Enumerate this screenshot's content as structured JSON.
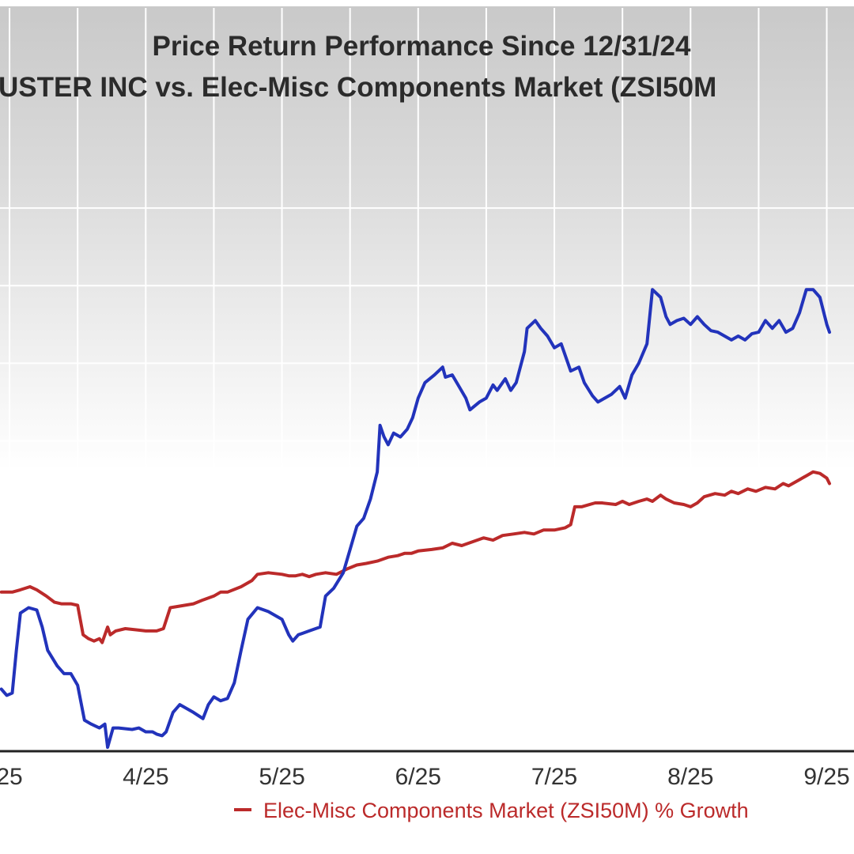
{
  "colors": {
    "series_a": "#2233bb",
    "series_b": "#bb2a2a",
    "axis": "#222222",
    "grid": "#ffffff",
    "bg_top": "#c9c9c9",
    "bg_bottom": "#ffffff"
  },
  "chart_data": {
    "type": "line",
    "title": "Price Return Performance Since 12/31/24",
    "subtitle": "USTER INC   vs.  Elec-Misc Components Market (ZSI50M",
    "xlabel": "",
    "ylabel": "",
    "x_ticks": [
      {
        "label": "25",
        "x": 2.0
      },
      {
        "label": "4/25",
        "x": 3.0
      },
      {
        "label": "5/25",
        "x": 4.0
      },
      {
        "label": "6/25",
        "x": 5.0
      },
      {
        "label": "7/25",
        "x": 6.0
      },
      {
        "label": "8/25",
        "x": 7.0
      },
      {
        "label": "9/25",
        "x": 8.0
      }
    ],
    "xlim": [
      1.93,
      8.2
    ],
    "ylim": [
      0,
      8
    ],
    "grid": true,
    "legend": [
      {
        "label": "Elec-Misc Components Market (ZSI50M) % Growth",
        "series": "b"
      }
    ],
    "series": [
      {
        "name": "CLUSTER INC",
        "color": "#2233bb",
        "points": [
          [
            1.94,
            0.8
          ],
          [
            1.98,
            0.72
          ],
          [
            2.02,
            0.75
          ],
          [
            2.05,
            1.3
          ],
          [
            2.08,
            1.78
          ],
          [
            2.14,
            1.85
          ],
          [
            2.2,
            1.82
          ],
          [
            2.24,
            1.6
          ],
          [
            2.28,
            1.3
          ],
          [
            2.35,
            1.1
          ],
          [
            2.4,
            1.0
          ],
          [
            2.45,
            1.0
          ],
          [
            2.5,
            0.85
          ],
          [
            2.55,
            0.4
          ],
          [
            2.6,
            0.35
          ],
          [
            2.66,
            0.3
          ],
          [
            2.7,
            0.35
          ],
          [
            2.72,
            0.05
          ],
          [
            2.76,
            0.3
          ],
          [
            2.8,
            0.3
          ],
          [
            2.9,
            0.28
          ],
          [
            2.95,
            0.3
          ],
          [
            3.0,
            0.25
          ],
          [
            3.05,
            0.25
          ],
          [
            3.08,
            0.22
          ],
          [
            3.12,
            0.2
          ],
          [
            3.15,
            0.25
          ],
          [
            3.2,
            0.5
          ],
          [
            3.25,
            0.6
          ],
          [
            3.3,
            0.55
          ],
          [
            3.35,
            0.5
          ],
          [
            3.42,
            0.42
          ],
          [
            3.46,
            0.6
          ],
          [
            3.5,
            0.7
          ],
          [
            3.55,
            0.65
          ],
          [
            3.6,
            0.68
          ],
          [
            3.65,
            0.88
          ],
          [
            3.7,
            1.3
          ],
          [
            3.75,
            1.7
          ],
          [
            3.82,
            1.85
          ],
          [
            3.9,
            1.8
          ],
          [
            4.0,
            1.7
          ],
          [
            4.05,
            1.5
          ],
          [
            4.08,
            1.42
          ],
          [
            4.12,
            1.5
          ],
          [
            4.2,
            1.55
          ],
          [
            4.28,
            1.6
          ],
          [
            4.32,
            2.0
          ],
          [
            4.38,
            2.1
          ],
          [
            4.45,
            2.3
          ],
          [
            4.5,
            2.6
          ],
          [
            4.55,
            2.9
          ],
          [
            4.6,
            3.0
          ],
          [
            4.65,
            3.25
          ],
          [
            4.7,
            3.6
          ],
          [
            4.72,
            4.2
          ],
          [
            4.75,
            4.05
          ],
          [
            4.78,
            3.95
          ],
          [
            4.82,
            4.1
          ],
          [
            4.87,
            4.05
          ],
          [
            4.92,
            4.15
          ],
          [
            4.96,
            4.3
          ],
          [
            5.0,
            4.55
          ],
          [
            5.05,
            4.75
          ],
          [
            5.12,
            4.85
          ],
          [
            5.18,
            4.95
          ],
          [
            5.2,
            4.82
          ],
          [
            5.25,
            4.85
          ],
          [
            5.3,
            4.7
          ],
          [
            5.35,
            4.55
          ],
          [
            5.38,
            4.4
          ],
          [
            5.45,
            4.5
          ],
          [
            5.5,
            4.55
          ],
          [
            5.55,
            4.72
          ],
          [
            5.58,
            4.65
          ],
          [
            5.64,
            4.8
          ],
          [
            5.68,
            4.65
          ],
          [
            5.72,
            4.75
          ],
          [
            5.78,
            5.15
          ],
          [
            5.8,
            5.45
          ],
          [
            5.86,
            5.55
          ],
          [
            5.9,
            5.45
          ],
          [
            5.95,
            5.35
          ],
          [
            6.0,
            5.2
          ],
          [
            6.05,
            5.25
          ],
          [
            6.12,
            4.9
          ],
          [
            6.18,
            4.95
          ],
          [
            6.22,
            4.75
          ],
          [
            6.28,
            4.58
          ],
          [
            6.32,
            4.5
          ],
          [
            6.37,
            4.55
          ],
          [
            6.42,
            4.6
          ],
          [
            6.48,
            4.7
          ],
          [
            6.52,
            4.55
          ],
          [
            6.57,
            4.85
          ],
          [
            6.62,
            5.0
          ],
          [
            6.68,
            5.25
          ],
          [
            6.72,
            5.95
          ],
          [
            6.78,
            5.85
          ],
          [
            6.82,
            5.6
          ],
          [
            6.85,
            5.5
          ],
          [
            6.9,
            5.55
          ],
          [
            6.95,
            5.58
          ],
          [
            7.0,
            5.5
          ],
          [
            7.05,
            5.6
          ],
          [
            7.1,
            5.5
          ],
          [
            7.15,
            5.42
          ],
          [
            7.2,
            5.4
          ],
          [
            7.25,
            5.35
          ],
          [
            7.3,
            5.3
          ],
          [
            7.35,
            5.35
          ],
          [
            7.4,
            5.3
          ],
          [
            7.45,
            5.38
          ],
          [
            7.5,
            5.4
          ],
          [
            7.55,
            5.55
          ],
          [
            7.6,
            5.45
          ],
          [
            7.65,
            5.55
          ],
          [
            7.7,
            5.4
          ],
          [
            7.75,
            5.45
          ],
          [
            7.8,
            5.65
          ],
          [
            7.85,
            5.95
          ],
          [
            7.9,
            5.95
          ],
          [
            7.95,
            5.85
          ],
          [
            8.0,
            5.5
          ],
          [
            8.02,
            5.4
          ]
        ]
      },
      {
        "name": "Elec-Misc Components Market (ZSI50M) % Growth",
        "color": "#bb2a2a",
        "points": [
          [
            1.94,
            2.05
          ],
          [
            2.02,
            2.05
          ],
          [
            2.08,
            2.08
          ],
          [
            2.15,
            2.12
          ],
          [
            2.2,
            2.08
          ],
          [
            2.27,
            2.0
          ],
          [
            2.33,
            1.92
          ],
          [
            2.38,
            1.9
          ],
          [
            2.45,
            1.9
          ],
          [
            2.5,
            1.88
          ],
          [
            2.54,
            1.5
          ],
          [
            2.58,
            1.45
          ],
          [
            2.62,
            1.42
          ],
          [
            2.66,
            1.45
          ],
          [
            2.68,
            1.4
          ],
          [
            2.72,
            1.6
          ],
          [
            2.74,
            1.5
          ],
          [
            2.78,
            1.55
          ],
          [
            2.85,
            1.58
          ],
          [
            2.95,
            1.56
          ],
          [
            3.0,
            1.55
          ],
          [
            3.08,
            1.55
          ],
          [
            3.13,
            1.58
          ],
          [
            3.18,
            1.85
          ],
          [
            3.25,
            1.87
          ],
          [
            3.35,
            1.9
          ],
          [
            3.42,
            1.95
          ],
          [
            3.5,
            2.0
          ],
          [
            3.55,
            2.05
          ],
          [
            3.6,
            2.05
          ],
          [
            3.7,
            2.12
          ],
          [
            3.78,
            2.2
          ],
          [
            3.82,
            2.28
          ],
          [
            3.9,
            2.3
          ],
          [
            4.0,
            2.28
          ],
          [
            4.05,
            2.26
          ],
          [
            4.1,
            2.26
          ],
          [
            4.15,
            2.28
          ],
          [
            4.2,
            2.25
          ],
          [
            4.25,
            2.28
          ],
          [
            4.32,
            2.3
          ],
          [
            4.4,
            2.28
          ],
          [
            4.48,
            2.35
          ],
          [
            4.55,
            2.4
          ],
          [
            4.62,
            2.42
          ],
          [
            4.7,
            2.45
          ],
          [
            4.78,
            2.5
          ],
          [
            4.85,
            2.52
          ],
          [
            4.9,
            2.55
          ],
          [
            4.95,
            2.55
          ],
          [
            5.0,
            2.58
          ],
          [
            5.1,
            2.6
          ],
          [
            5.18,
            2.62
          ],
          [
            5.25,
            2.68
          ],
          [
            5.32,
            2.65
          ],
          [
            5.4,
            2.7
          ],
          [
            5.48,
            2.75
          ],
          [
            5.55,
            2.72
          ],
          [
            5.62,
            2.78
          ],
          [
            5.7,
            2.8
          ],
          [
            5.78,
            2.82
          ],
          [
            5.85,
            2.8
          ],
          [
            5.92,
            2.85
          ],
          [
            6.0,
            2.85
          ],
          [
            6.08,
            2.88
          ],
          [
            6.12,
            2.92
          ],
          [
            6.15,
            3.15
          ],
          [
            6.2,
            3.15
          ],
          [
            6.3,
            3.2
          ],
          [
            6.35,
            3.2
          ],
          [
            6.45,
            3.18
          ],
          [
            6.5,
            3.22
          ],
          [
            6.55,
            3.18
          ],
          [
            6.62,
            3.22
          ],
          [
            6.68,
            3.25
          ],
          [
            6.72,
            3.22
          ],
          [
            6.78,
            3.3
          ],
          [
            6.82,
            3.25
          ],
          [
            6.88,
            3.2
          ],
          [
            6.95,
            3.18
          ],
          [
            7.0,
            3.15
          ],
          [
            7.05,
            3.2
          ],
          [
            7.1,
            3.28
          ],
          [
            7.18,
            3.32
          ],
          [
            7.25,
            3.3
          ],
          [
            7.3,
            3.35
          ],
          [
            7.35,
            3.32
          ],
          [
            7.42,
            3.38
          ],
          [
            7.48,
            3.35
          ],
          [
            7.55,
            3.4
          ],
          [
            7.62,
            3.38
          ],
          [
            7.68,
            3.45
          ],
          [
            7.72,
            3.42
          ],
          [
            7.8,
            3.5
          ],
          [
            7.85,
            3.55
          ],
          [
            7.9,
            3.6
          ],
          [
            7.95,
            3.58
          ],
          [
            8.0,
            3.52
          ],
          [
            8.02,
            3.45
          ]
        ]
      }
    ]
  }
}
